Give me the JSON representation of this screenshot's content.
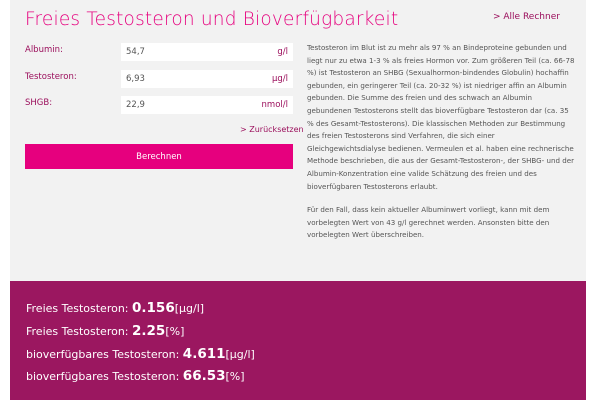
{
  "header": {
    "title": "Freies Testosteron und Bioverfügbarkeit",
    "all_calculators": "> Alle Rechner"
  },
  "form": {
    "fields": [
      {
        "label": "Albumin:",
        "value": "54,7",
        "unit": "g/l"
      },
      {
        "label": "Testosteron:",
        "value": "6,93",
        "unit": "μg/l"
      },
      {
        "label": "SHGB:",
        "value": "22,9",
        "unit": "nmol/l"
      }
    ],
    "reset_label": "> Zurücksetzen",
    "calculate_label": "Berechnen"
  },
  "description": {
    "paragraph1": "Testosteron im Blut ist zu mehr als 97 % an Bindeproteine gebunden und liegt nur zu etwa 1-3 % als freies Hormon vor. Zum größeren Teil (ca. 66-78 %) ist Testosteron an SHBG (Sexualhormon-bindendes Globulin) hochaffin gebunden, ein geringerer Teil (ca. 20-32 %) ist niedriger affin an Albumin gebunden. Die Summe des freien und des schwach an Albumin gebundenen Testosterons stellt das bioverfügbare Testosteron dar (ca. 35 % des Gesamt-Testosterons). Die klassischen Methoden zur Bestimmung des freien Testosterons sind Verfahren, die sich einer Gleichgewichtsdialyse bedienen. Vermeulen et al. haben eine rechnerische Methode beschrieben, die aus der Gesamt-Testosteron-, der SHBG- und der Albumin-Konzentration eine valide Schätzung des freien und des bioverfügbaren Testosterons erlaubt.",
    "paragraph2": "Für den Fall, dass kein aktueller Albuminwert vorliegt, kann mit dem vorbelegten Wert von 43 g/l gerechnet werden. Ansonsten bitte den vorbelegten Wert überschreiben."
  },
  "results": [
    {
      "label": "Freies Testosteron: ",
      "value": "0.156",
      "unit": "[μg/l]"
    },
    {
      "label": "Freies Testosteron: ",
      "value": "2.25",
      "unit": "[%]"
    },
    {
      "label": "bioverfügbares Testosteron: ",
      "value": "4.611",
      "unit": "[μg/l]"
    },
    {
      "label": "bioverfügbares Testosteron: ",
      "value": "66.53",
      "unit": "[%]"
    }
  ],
  "colors": {
    "accent": "#e6007e",
    "results_background": "#9b1760",
    "panel_background": "#f2f2f2"
  }
}
